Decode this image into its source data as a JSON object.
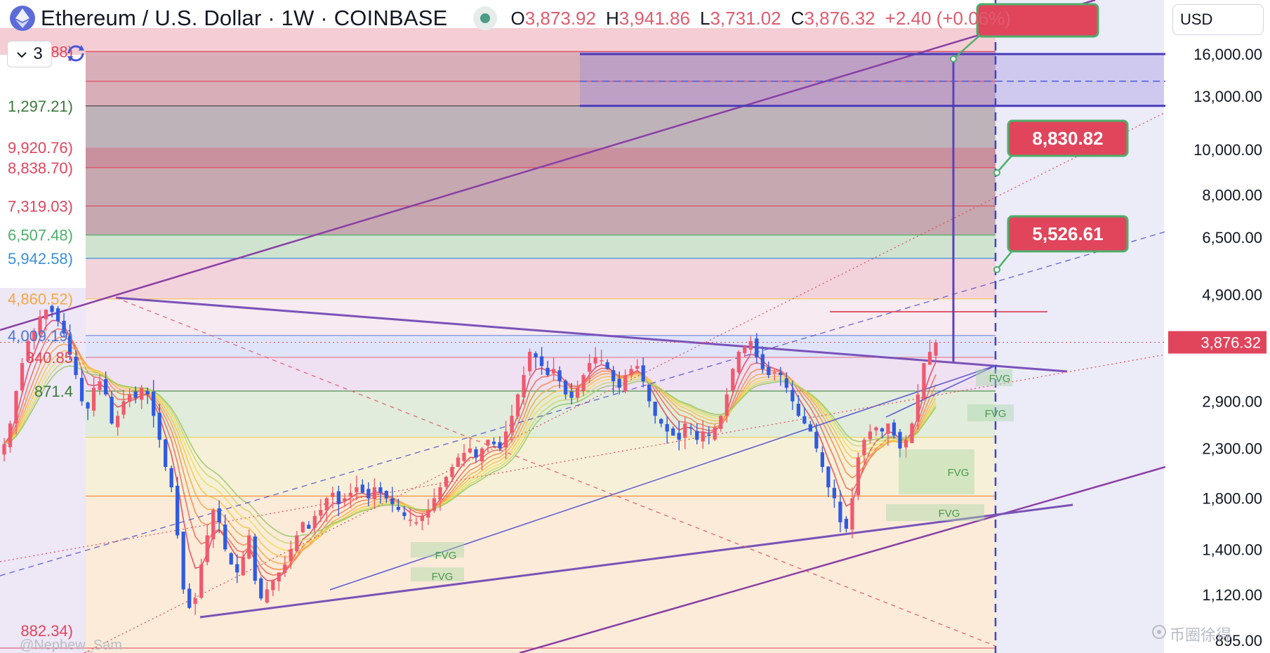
{
  "header": {
    "title": "Ethereum / U.S. Dollar · 1W · COINBASE",
    "open_label": "O",
    "open": "3,873.92",
    "high_label": "H",
    "high": "3,941.86",
    "low_label": "L",
    "low": "3,731.02",
    "close_label": "C",
    "close": "3,876.32",
    "change": "+2.40 (+0.06%)"
  },
  "indicators_count": "3",
  "currency": "USD",
  "watermark": "@Nephew_Sam",
  "brand": "币圈徐得",
  "colors": {
    "up": "#ef5a6f",
    "down": "#2f5be0",
    "channel": "#8a3fa6",
    "target_label_bg": "#e0455c",
    "target_label_border": "#4caf6a"
  },
  "chart_data": {
    "type": "candlestick",
    "symbol": "Ethereum / U.S. Dollar",
    "interval": "1W",
    "exchange": "COINBASE",
    "y_scale": "log",
    "ylim": [
      880,
      23000
    ],
    "price_axis_ticks": [
      "16,000.00",
      "13,000.00",
      "10,000.00",
      "8,000.00",
      "6,500.00",
      "4,900.00",
      "2,900.00",
      "2,300.00",
      "1,800.00",
      "1,400.00",
      "1,120.00",
      "895.00"
    ],
    "price_axis_values": [
      16000,
      13000,
      10000,
      8000,
      6500,
      4900,
      2900,
      2300,
      1800,
      1400,
      1120,
      895
    ],
    "last_price_label": "3,876.32",
    "last_price": 3876.32,
    "fib_levels_left": [
      {
        "label": "2,816.88)",
        "value": 16200,
        "color": "#e0455c"
      },
      {
        "label": "1,297.21)",
        "value": 12400,
        "color": "#3a7a3a"
      },
      {
        "label": "9,920.76)",
        "value": 10100,
        "color": "#e0455c"
      },
      {
        "label": "8,838.70)",
        "value": 9150,
        "color": "#e0455c"
      },
      {
        "label": "7,319.03)",
        "value": 7580,
        "color": "#e0455c"
      },
      {
        "label": "6,507.48)",
        "value": 6570,
        "color": "#4caf6a"
      },
      {
        "label": "5,942.58)",
        "value": 5860,
        "color": "#3c8fd6"
      },
      {
        "label": "4,860.52)",
        "value": 4800,
        "color": "#f5a742"
      },
      {
        "label": "4,009.19)",
        "value": 4009,
        "color": "#4a74d6"
      },
      {
        "label": "340.85",
        "value": 3600,
        "color": "#e0455c"
      },
      {
        "label": "871.4",
        "value": 3050,
        "color": "#3a7a3a"
      },
      {
        "label": "882.34)",
        "value": 940,
        "color": "#e0455c"
      }
    ],
    "target_labels": [
      "8,830.82",
      "5,526.61"
    ],
    "fvg_labels": [
      "FVG",
      "FVG",
      "FVG",
      "FVG",
      "FVG",
      "FVG"
    ],
    "close_series": [
      2350,
      2600,
      3050,
      3500,
      3900,
      4100,
      4400,
      4550,
      4500,
      4300,
      4050,
      3650,
      3300,
      2900,
      2800,
      3100,
      3200,
      3000,
      2600,
      2700,
      2900,
      3000,
      2950,
      3100,
      3000,
      2700,
      2400,
      2100,
      1900,
      1500,
      1150,
      1050,
      1100,
      1300,
      1500,
      1700,
      1600,
      1400,
      1300,
      1250,
      1350,
      1500,
      1200,
      1100,
      1150,
      1200,
      1250,
      1300,
      1400,
      1500,
      1600,
      1550,
      1650,
      1700,
      1800,
      1850,
      1750,
      1800,
      1850,
      1900,
      1850,
      1800,
      1900,
      1850,
      1800,
      1750,
      1700,
      1650,
      1620,
      1600,
      1650,
      1700,
      1800,
      1900,
      2000,
      2100,
      2200,
      2250,
      2300,
      2200,
      2300,
      2400,
      2350,
      2300,
      2500,
      2700,
      3000,
      3300,
      3700,
      3600,
      3450,
      3300,
      3400,
      3200,
      3000,
      2950,
      3100,
      3300,
      3500,
      3600,
      3550,
      3400,
      3200,
      3100,
      3300,
      3400,
      3450,
      3200,
      2900,
      2700,
      2600,
      2500,
      2450,
      2400,
      2600,
      2550,
      2400,
      2500,
      2450,
      2550,
      2700,
      3000,
      3400,
      3700,
      3800,
      3900,
      3600,
      3400,
      3300,
      3350,
      3300,
      3100,
      2900,
      2700,
      2600,
      2500,
      2300,
      2100,
      1900,
      1800,
      1600,
      1550,
      1800,
      2200,
      2400,
      2500,
      2550,
      2500,
      2600,
      2450,
      2300,
      2400,
      2600,
      3000,
      3500,
      3700,
      3876
    ]
  }
}
